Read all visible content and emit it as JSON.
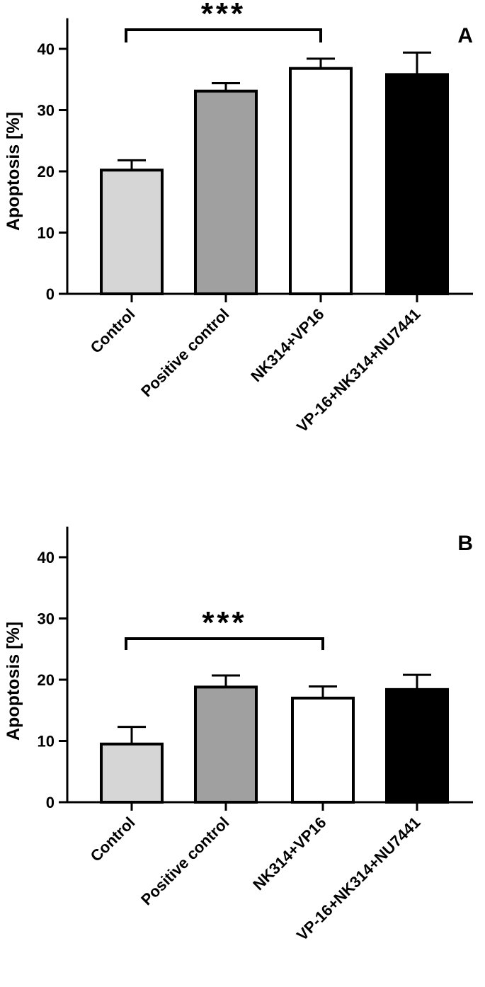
{
  "chart_data": [
    {
      "type": "bar",
      "panel_label": "A",
      "ylabel": "Apoptosis [%]",
      "ylim": [
        0,
        45
      ],
      "yticks": [
        0,
        10,
        20,
        30,
        40
      ],
      "categories": [
        "Control",
        "Positive control",
        "NK314+VP16",
        "VP-16+NK314+NU7441"
      ],
      "values": [
        20.2,
        33.1,
        36.8,
        35.8
      ],
      "errors": [
        1.6,
        1.3,
        1.6,
        3.6
      ],
      "colors": [
        "#d6d6d6",
        "#a0a0a0",
        "#ffffff",
        "#000000"
      ],
      "significance": {
        "label": "***",
        "from": 0,
        "to": 2
      },
      "grid": false
    },
    {
      "type": "bar",
      "panel_label": "B",
      "ylabel": "Apoptosis [%]",
      "ylim": [
        0,
        45
      ],
      "yticks": [
        0,
        10,
        20,
        30,
        40
      ],
      "categories": [
        "Control",
        "Positive control",
        "NK314+VP16",
        "VP-16+NK314+NU7441"
      ],
      "values": [
        9.5,
        18.8,
        17.0,
        18.4
      ],
      "errors": [
        2.8,
        1.9,
        1.9,
        2.4
      ],
      "colors": [
        "#d6d6d6",
        "#a0a0a0",
        "#ffffff",
        "#000000"
      ],
      "significance": {
        "label": "***",
        "from": 0,
        "to": 2
      },
      "grid": false
    }
  ]
}
